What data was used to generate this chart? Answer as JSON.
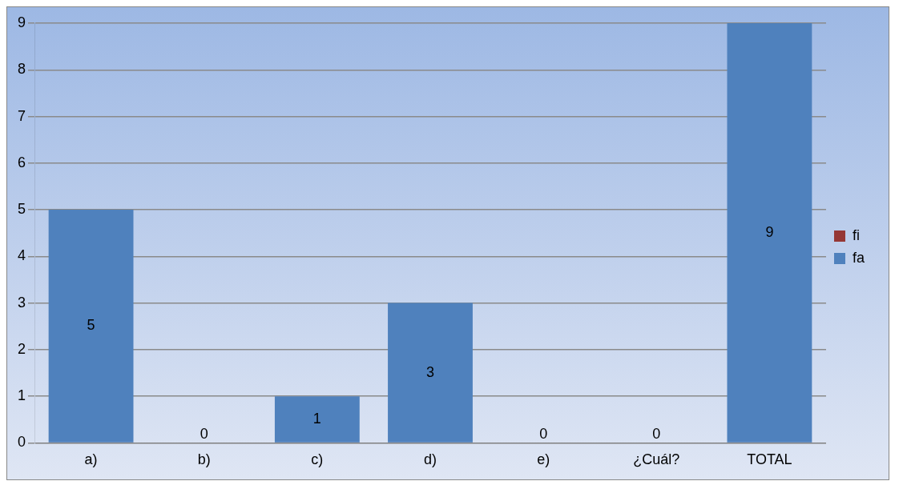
{
  "chart_data": {
    "type": "bar",
    "stacked": true,
    "categories": [
      "a)",
      "b)",
      "c)",
      "d)",
      "e)",
      "¿Cuál?",
      "TOTAL"
    ],
    "series": [
      {
        "name": "fa",
        "color": "#4f81bd",
        "values": [
          5,
          0,
          1,
          3,
          0,
          0,
          9
        ],
        "value_labels": [
          "5",
          "0",
          "1",
          "3",
          "0",
          "0",
          "9"
        ]
      },
      {
        "name": "fi",
        "color": "#953735",
        "values": [
          0,
          0,
          0,
          0,
          0,
          0,
          0
        ]
      }
    ],
    "ylim": [
      0,
      9
    ],
    "yticks": [
      0,
      1,
      2,
      3,
      4,
      5,
      6,
      7,
      8,
      9
    ],
    "grid": "y",
    "legend": "right"
  }
}
